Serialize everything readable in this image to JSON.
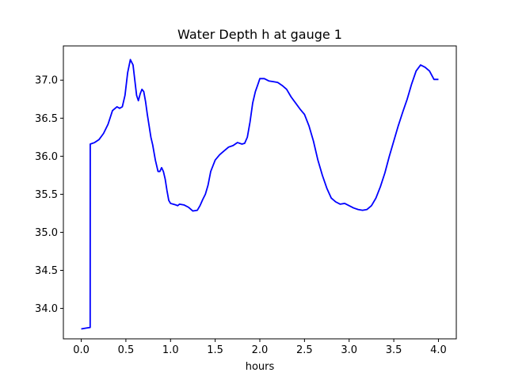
{
  "chart_data": {
    "type": "line",
    "title": "Water Depth h at gauge 1",
    "xlabel": "hours",
    "ylabel": "",
    "xlim": [
      -0.2,
      4.2
    ],
    "ylim": [
      33.6,
      37.45
    ],
    "grid": false,
    "xticks": [
      0.0,
      0.5,
      1.0,
      1.5,
      2.0,
      2.5,
      3.0,
      3.5,
      4.0
    ],
    "xtick_labels": [
      "0.0",
      "0.5",
      "1.0",
      "1.5",
      "2.0",
      "2.5",
      "3.0",
      "3.5",
      "4.0"
    ],
    "yticks": [
      34.0,
      34.5,
      35.0,
      35.5,
      36.0,
      36.5,
      37.0
    ],
    "ytick_labels": [
      "34.0",
      "34.5",
      "35.0",
      "35.5",
      "36.0",
      "36.5",
      "37.0"
    ],
    "series": [
      {
        "color": "#0000ff",
        "x": [
          0.0,
          0.05,
          0.1,
          0.101,
          0.15,
          0.2,
          0.25,
          0.3,
          0.35,
          0.4,
          0.43,
          0.46,
          0.49,
          0.52,
          0.55,
          0.58,
          0.6,
          0.62,
          0.64,
          0.66,
          0.68,
          0.7,
          0.72,
          0.74,
          0.76,
          0.78,
          0.8,
          0.83,
          0.86,
          0.88,
          0.9,
          0.92,
          0.94,
          0.96,
          0.98,
          1.0,
          1.03,
          1.06,
          1.08,
          1.1,
          1.15,
          1.2,
          1.25,
          1.3,
          1.33,
          1.36,
          1.39,
          1.42,
          1.45,
          1.5,
          1.55,
          1.6,
          1.65,
          1.7,
          1.75,
          1.8,
          1.83,
          1.86,
          1.89,
          1.92,
          1.95,
          1.98,
          2.0,
          2.05,
          2.1,
          2.15,
          2.2,
          2.25,
          2.3,
          2.35,
          2.4,
          2.45,
          2.5,
          2.55,
          2.6,
          2.65,
          2.7,
          2.75,
          2.8,
          2.85,
          2.9,
          2.95,
          3.0,
          3.05,
          3.1,
          3.15,
          3.2,
          3.25,
          3.3,
          3.35,
          3.4,
          3.45,
          3.5,
          3.55,
          3.6,
          3.65,
          3.7,
          3.75,
          3.8,
          3.85,
          3.9,
          3.95,
          4.0
        ],
        "y": [
          33.73,
          33.74,
          33.75,
          36.16,
          36.18,
          36.22,
          36.3,
          36.42,
          36.6,
          36.65,
          36.63,
          36.65,
          36.8,
          37.1,
          37.27,
          37.2,
          37.0,
          36.8,
          36.73,
          36.82,
          36.88,
          36.85,
          36.72,
          36.55,
          36.4,
          36.25,
          36.15,
          35.95,
          35.8,
          35.8,
          35.85,
          35.8,
          35.7,
          35.55,
          35.42,
          35.38,
          35.37,
          35.36,
          35.35,
          35.37,
          35.36,
          35.33,
          35.28,
          35.29,
          35.35,
          35.43,
          35.5,
          35.62,
          35.8,
          35.95,
          36.02,
          36.07,
          36.12,
          36.14,
          36.18,
          36.16,
          36.17,
          36.25,
          36.45,
          36.7,
          36.85,
          36.95,
          37.02,
          37.02,
          36.99,
          36.98,
          36.97,
          36.93,
          36.88,
          36.78,
          36.7,
          36.62,
          36.55,
          36.4,
          36.2,
          35.95,
          35.75,
          35.58,
          35.45,
          35.4,
          35.37,
          35.38,
          35.35,
          35.32,
          35.3,
          35.29,
          35.3,
          35.35,
          35.45,
          35.6,
          35.78,
          36.0,
          36.2,
          36.4,
          36.58,
          36.75,
          36.95,
          37.12,
          37.2,
          37.17,
          37.12,
          37.01,
          37.01
        ]
      }
    ]
  }
}
